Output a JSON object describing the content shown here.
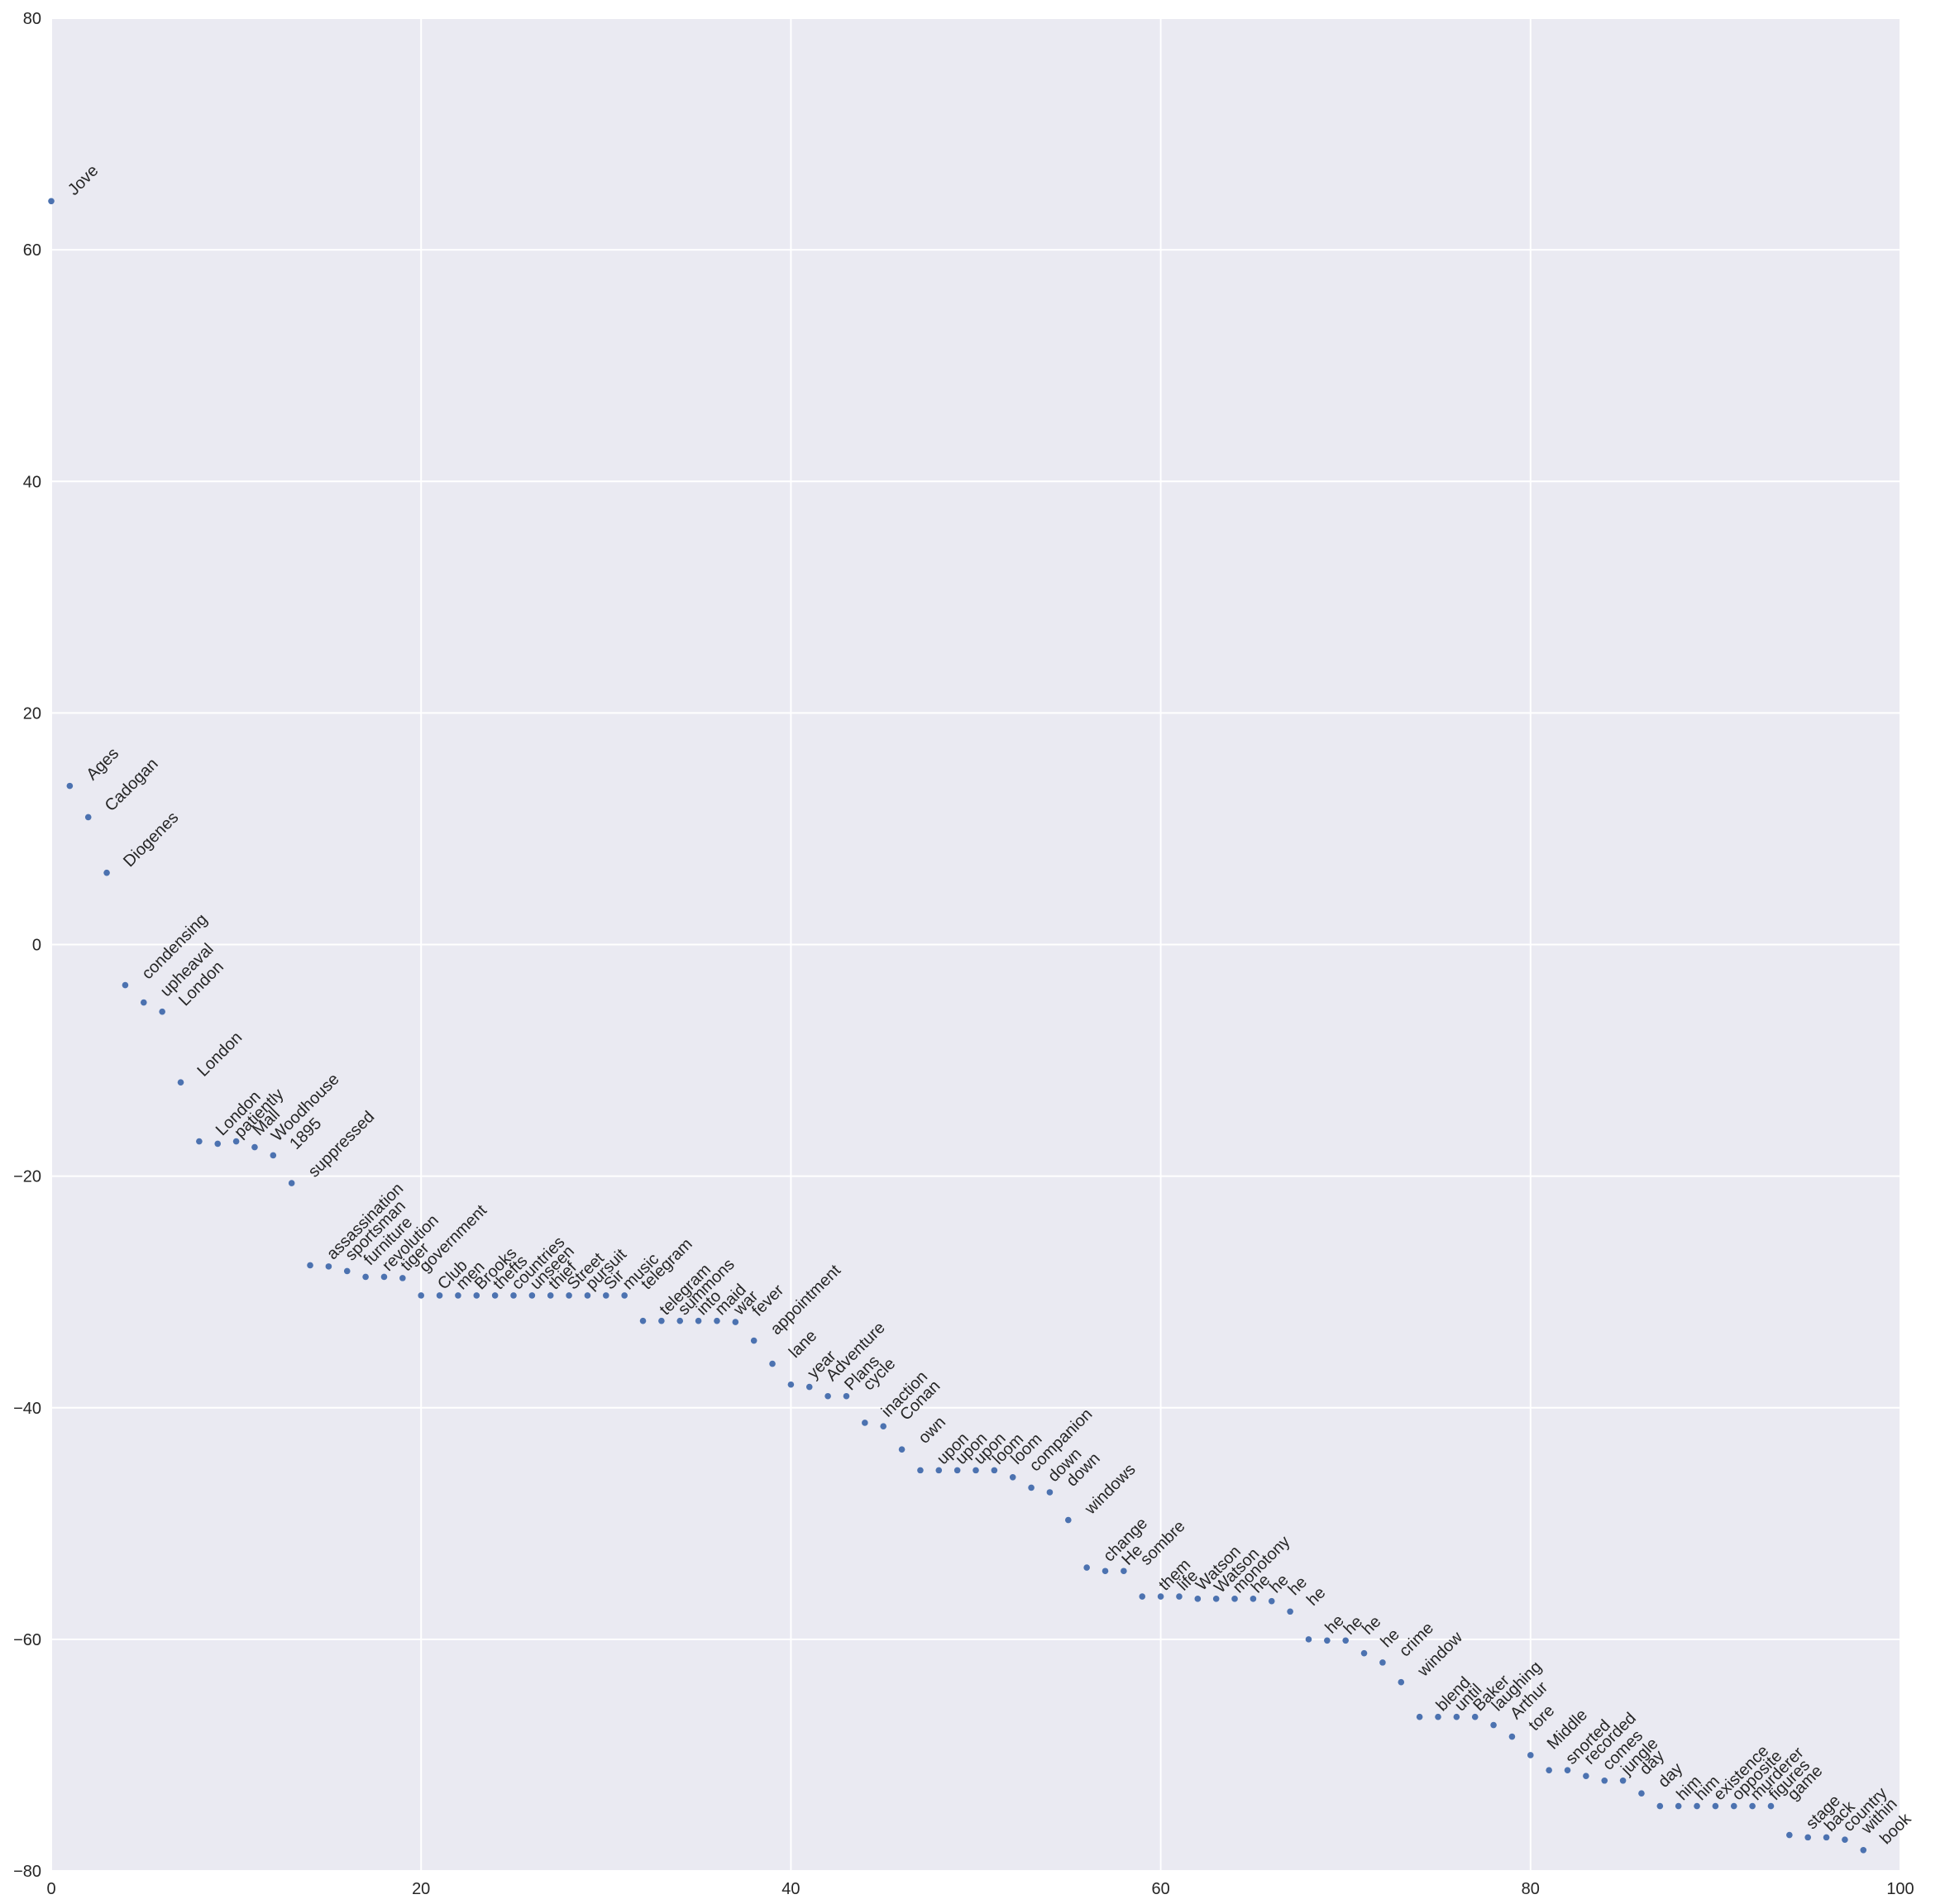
{
  "chart_data": {
    "type": "scatter",
    "title": "",
    "xlabel": "",
    "ylabel": "",
    "xlim": [
      0,
      100
    ],
    "ylim": [
      -80,
      80
    ],
    "xticks": [
      0,
      20,
      40,
      60,
      80,
      100
    ],
    "yticks": [
      -80,
      -60,
      -40,
      -20,
      0,
      20,
      40,
      60,
      80
    ],
    "xtick_labels": [
      "0",
      "20",
      "40",
      "60",
      "80",
      "100"
    ],
    "ytick_labels": [
      "−80",
      "−60",
      "−40",
      "−20",
      "0",
      "20",
      "40",
      "60",
      "80"
    ],
    "grid": true,
    "style": {
      "background": "#eaeaf2",
      "grid_color": "#ffffff",
      "point_color": "#4c72b0"
    },
    "points": [
      {
        "x": 0,
        "y": 64.2,
        "label": "Jove"
      },
      {
        "x": 1,
        "y": 13.7,
        "label": "Ages"
      },
      {
        "x": 2,
        "y": 11.0,
        "label": "Cadogan"
      },
      {
        "x": 3,
        "y": 6.2,
        "label": "Diogenes"
      },
      {
        "x": 4,
        "y": -3.5,
        "label": "condensing"
      },
      {
        "x": 5,
        "y": -5.0,
        "label": "upheaval"
      },
      {
        "x": 6,
        "y": -5.8,
        "label": "London"
      },
      {
        "x": 7,
        "y": -11.9,
        "label": "London"
      },
      {
        "x": 8,
        "y": -17.0,
        "label": "London"
      },
      {
        "x": 9,
        "y": -17.2,
        "label": "patiently"
      },
      {
        "x": 10,
        "y": -17.0,
        "label": "Mall"
      },
      {
        "x": 11,
        "y": -17.5,
        "label": "Woodhouse"
      },
      {
        "x": 12,
        "y": -18.2,
        "label": "1895"
      },
      {
        "x": 13,
        "y": -20.6,
        "label": "suppressed"
      },
      {
        "x": 14,
        "y": -27.7,
        "label": "assassination"
      },
      {
        "x": 15,
        "y": -27.8,
        "label": "sportsman"
      },
      {
        "x": 16,
        "y": -28.2,
        "label": "furniture"
      },
      {
        "x": 17,
        "y": -28.7,
        "label": "revolution"
      },
      {
        "x": 18,
        "y": -28.7,
        "label": "tiger"
      },
      {
        "x": 19,
        "y": -28.8,
        "label": "government"
      },
      {
        "x": 20,
        "y": -30.3,
        "label": "Club"
      },
      {
        "x": 21,
        "y": -30.3,
        "label": "men"
      },
      {
        "x": 22,
        "y": -30.3,
        "label": "Brooks"
      },
      {
        "x": 23,
        "y": -30.3,
        "label": "thefts"
      },
      {
        "x": 24,
        "y": -30.3,
        "label": "countries"
      },
      {
        "x": 25,
        "y": -30.3,
        "label": "unseen"
      },
      {
        "x": 26,
        "y": -30.3,
        "label": "thief"
      },
      {
        "x": 27,
        "y": -30.3,
        "label": "Street"
      },
      {
        "x": 28,
        "y": -30.3,
        "label": "pursuit"
      },
      {
        "x": 29,
        "y": -30.3,
        "label": "Sir"
      },
      {
        "x": 30,
        "y": -30.3,
        "label": "music"
      },
      {
        "x": 31,
        "y": -30.3,
        "label": "telegram"
      },
      {
        "x": 32,
        "y": -32.5,
        "label": "telegram"
      },
      {
        "x": 33,
        "y": -32.5,
        "label": "summons"
      },
      {
        "x": 34,
        "y": -32.5,
        "label": "into"
      },
      {
        "x": 35,
        "y": -32.5,
        "label": "maid"
      },
      {
        "x": 36,
        "y": -32.5,
        "label": "war"
      },
      {
        "x": 37,
        "y": -32.6,
        "label": "fever"
      },
      {
        "x": 38,
        "y": -34.2,
        "label": "appointment"
      },
      {
        "x": 39,
        "y": -36.2,
        "label": "lane"
      },
      {
        "x": 40,
        "y": -38.0,
        "label": "year"
      },
      {
        "x": 41,
        "y": -38.2,
        "label": "Adventure"
      },
      {
        "x": 42,
        "y": -39.0,
        "label": "Plans"
      },
      {
        "x": 43,
        "y": -39.0,
        "label": "cycle"
      },
      {
        "x": 44,
        "y": -41.3,
        "label": "inaction"
      },
      {
        "x": 45,
        "y": -41.6,
        "label": "Conan"
      },
      {
        "x": 46,
        "y": -43.6,
        "label": "own"
      },
      {
        "x": 47,
        "y": -45.4,
        "label": "upon"
      },
      {
        "x": 48,
        "y": -45.4,
        "label": "upon"
      },
      {
        "x": 49,
        "y": -45.4,
        "label": "upon"
      },
      {
        "x": 50,
        "y": -45.4,
        "label": "loom"
      },
      {
        "x": 51,
        "y": -45.4,
        "label": "loom"
      },
      {
        "x": 52,
        "y": -46.0,
        "label": "companion"
      },
      {
        "x": 53,
        "y": -46.9,
        "label": "down"
      },
      {
        "x": 54,
        "y": -47.3,
        "label": "down"
      },
      {
        "x": 55,
        "y": -49.7,
        "label": "windows"
      },
      {
        "x": 56,
        "y": -53.8,
        "label": "change"
      },
      {
        "x": 57,
        "y": -54.1,
        "label": "He"
      },
      {
        "x": 58,
        "y": -54.1,
        "label": "sombre"
      },
      {
        "x": 59,
        "y": -56.3,
        "label": "them"
      },
      {
        "x": 60,
        "y": -56.3,
        "label": "life"
      },
      {
        "x": 61,
        "y": -56.3,
        "label": "Watson"
      },
      {
        "x": 62,
        "y": -56.5,
        "label": "Watson"
      },
      {
        "x": 63,
        "y": -56.5,
        "label": "monotony"
      },
      {
        "x": 64,
        "y": -56.5,
        "label": "he"
      },
      {
        "x": 65,
        "y": -56.5,
        "label": "he"
      },
      {
        "x": 66,
        "y": -56.7,
        "label": "he"
      },
      {
        "x": 67,
        "y": -57.6,
        "label": "he"
      },
      {
        "x": 68,
        "y": -60.0,
        "label": "he"
      },
      {
        "x": 69,
        "y": -60.1,
        "label": "he"
      },
      {
        "x": 70,
        "y": -60.1,
        "label": "he"
      },
      {
        "x": 71,
        "y": -61.2,
        "label": "he"
      },
      {
        "x": 72,
        "y": -62.0,
        "label": "crime"
      },
      {
        "x": 73,
        "y": -63.7,
        "label": "window"
      },
      {
        "x": 74,
        "y": -66.7,
        "label": "blend"
      },
      {
        "x": 75,
        "y": -66.7,
        "label": "until"
      },
      {
        "x": 76,
        "y": -66.7,
        "label": "Baker"
      },
      {
        "x": 77,
        "y": -66.7,
        "label": "laughing"
      },
      {
        "x": 78,
        "y": -67.4,
        "label": "Arthur"
      },
      {
        "x": 79,
        "y": -68.4,
        "label": "tore"
      },
      {
        "x": 80,
        "y": -70.0,
        "label": "Middle"
      },
      {
        "x": 81,
        "y": -71.3,
        "label": "snorted"
      },
      {
        "x": 82,
        "y": -71.3,
        "label": "recorded"
      },
      {
        "x": 83,
        "y": -71.8,
        "label": "comes"
      },
      {
        "x": 84,
        "y": -72.2,
        "label": "jungle"
      },
      {
        "x": 85,
        "y": -72.2,
        "label": "day"
      },
      {
        "x": 86,
        "y": -73.3,
        "label": "day"
      },
      {
        "x": 87,
        "y": -74.4,
        "label": "him"
      },
      {
        "x": 88,
        "y": -74.4,
        "label": "him"
      },
      {
        "x": 89,
        "y": -74.4,
        "label": "existence"
      },
      {
        "x": 90,
        "y": -74.4,
        "label": "opposite"
      },
      {
        "x": 91,
        "y": -74.4,
        "label": "murderer"
      },
      {
        "x": 92,
        "y": -74.4,
        "label": "figures"
      },
      {
        "x": 93,
        "y": -74.4,
        "label": "game"
      },
      {
        "x": 94,
        "y": -76.9,
        "label": "stage"
      },
      {
        "x": 95,
        "y": -77.1,
        "label": "back"
      },
      {
        "x": 96,
        "y": -77.1,
        "label": "country"
      },
      {
        "x": 97,
        "y": -77.3,
        "label": "within"
      },
      {
        "x": 98,
        "y": -78.2,
        "label": "book"
      }
    ]
  }
}
